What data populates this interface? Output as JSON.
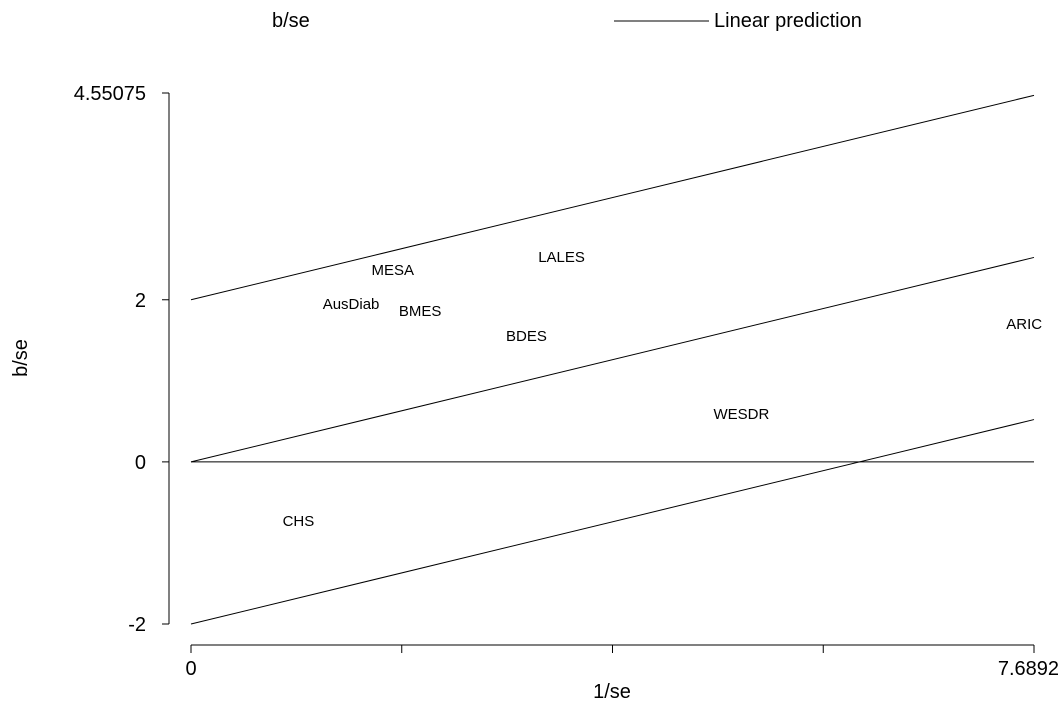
{
  "chart_data": {
    "type": "scatter",
    "xlabel": "1/se",
    "ylabel": "b/se",
    "xlim": [
      0,
      7.68921
    ],
    "ylim": [
      -2,
      4.55075
    ],
    "x_ticks": [
      0,
      1.9223,
      3.8446,
      5.7669,
      7.68921
    ],
    "x_tick_labels": [
      "0",
      "",
      "",
      "",
      "7.68921"
    ],
    "y_ticks": [
      -2,
      0,
      2,
      4.55075
    ],
    "y_tick_labels": [
      "-2",
      "0",
      "2",
      "4.55075"
    ],
    "legend": {
      "position": "top",
      "items": [
        {
          "label": "b/se",
          "marker": "none"
        },
        {
          "label": "Linear prediction",
          "marker": "line"
        }
      ]
    },
    "series": [
      {
        "name": "b/se",
        "style": "labels-only",
        "points": [
          {
            "label": "MESA",
            "x": 1.84,
            "y": 2.37
          },
          {
            "label": "LALES",
            "x": 3.38,
            "y": 2.53
          },
          {
            "label": "AusDiab",
            "x": 1.46,
            "y": 1.95
          },
          {
            "label": "BMES",
            "x": 2.09,
            "y": 1.86
          },
          {
            "label": "BDES",
            "x": 3.06,
            "y": 1.55
          },
          {
            "label": "ARIC",
            "x": 7.6,
            "y": 1.7
          },
          {
            "label": "WESDR",
            "x": 5.02,
            "y": 0.59
          },
          {
            "label": "CHS",
            "x": 0.98,
            "y": -0.73
          }
        ]
      },
      {
        "name": "Linear prediction",
        "style": "line",
        "fit": {
          "x": [
            0,
            7.68921
          ],
          "y": [
            0,
            2.522
          ]
        }
      }
    ],
    "ci_lines": [
      {
        "x": [
          0,
          7.68921
        ],
        "y": [
          2,
          4.522
        ]
      },
      {
        "x": [
          0,
          7.68921
        ],
        "y": [
          -2,
          0.522
        ]
      }
    ],
    "reference_line_y": 0
  }
}
